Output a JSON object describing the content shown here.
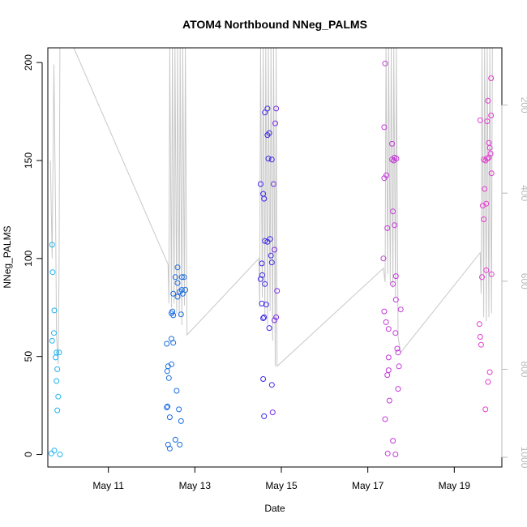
{
  "chart_data": {
    "type": "scatter",
    "title": "ATOM4 Northbound NNeg_PALMS",
    "xlabel": "Date",
    "ylabel": "NNeg_PALMS",
    "x_ticks": [
      "May 11",
      "May 13",
      "May 15",
      "May 17",
      "May 19"
    ],
    "y_ticks": [
      0,
      50,
      100,
      150,
      200
    ],
    "y_right_ticks": [
      200,
      400,
      600,
      800,
      1000
    ],
    "xlim_days": [
      9.6,
      20.1
    ],
    "ylim": [
      -6.4,
      207.5
    ],
    "y_right_lim": [
      1022,
      70
    ],
    "y_right_reversed": true,
    "grid": false,
    "legend": "none",
    "point_colors": [
      "#1fb4f2",
      "#1a6de0",
      "#3c28e8",
      "#7a2fe8",
      "#c43ad8",
      "#e43bd0"
    ],
    "line_color": "#c8c8c8",
    "points": [
      {
        "x": 9.7,
        "y": 107
      },
      {
        "x": 9.71,
        "y": 93
      },
      {
        "x": 9.7,
        "y": 58
      },
      {
        "x": 9.74,
        "y": 62
      },
      {
        "x": 9.75,
        "y": 73.5
      },
      {
        "x": 9.8,
        "y": 52
      },
      {
        "x": 9.86,
        "y": 52
      },
      {
        "x": 9.78,
        "y": 49.5
      },
      {
        "x": 9.82,
        "y": 43.5
      },
      {
        "x": 9.8,
        "y": 37.5
      },
      {
        "x": 9.84,
        "y": 29.5
      },
      {
        "x": 9.82,
        "y": 22.5
      },
      {
        "x": 9.68,
        "y": 0.5
      },
      {
        "x": 9.75,
        "y": 2
      },
      {
        "x": 9.88,
        "y": 0
      },
      {
        "x": 12.6,
        "y": 95.5
      },
      {
        "x": 12.55,
        "y": 90.5
      },
      {
        "x": 12.7,
        "y": 90.5
      },
      {
        "x": 12.75,
        "y": 90.5
      },
      {
        "x": 12.6,
        "y": 87.5
      },
      {
        "x": 12.7,
        "y": 84
      },
      {
        "x": 12.78,
        "y": 84
      },
      {
        "x": 12.65,
        "y": 83
      },
      {
        "x": 12.5,
        "y": 82
      },
      {
        "x": 12.72,
        "y": 82
      },
      {
        "x": 12.6,
        "y": 80.5
      },
      {
        "x": 12.48,
        "y": 73
      },
      {
        "x": 12.46,
        "y": 72
      },
      {
        "x": 12.5,
        "y": 71
      },
      {
        "x": 12.68,
        "y": 71.5
      },
      {
        "x": 12.46,
        "y": 59
      },
      {
        "x": 12.5,
        "y": 57
      },
      {
        "x": 12.35,
        "y": 56.5
      },
      {
        "x": 12.46,
        "y": 46
      },
      {
        "x": 12.38,
        "y": 45
      },
      {
        "x": 12.36,
        "y": 42.5
      },
      {
        "x": 12.4,
        "y": 39
      },
      {
        "x": 12.58,
        "y": 32.5
      },
      {
        "x": 12.37,
        "y": 24.5
      },
      {
        "x": 12.35,
        "y": 24
      },
      {
        "x": 12.63,
        "y": 23
      },
      {
        "x": 12.42,
        "y": 19
      },
      {
        "x": 12.68,
        "y": 17
      },
      {
        "x": 12.55,
        "y": 7.5
      },
      {
        "x": 12.38,
        "y": 5
      },
      {
        "x": 12.65,
        "y": 5
      },
      {
        "x": 12.42,
        "y": 3
      },
      {
        "x": 14.68,
        "y": 176.5
      },
      {
        "x": 14.88,
        "y": 176.5
      },
      {
        "x": 14.62,
        "y": 174.5
      },
      {
        "x": 14.86,
        "y": 169
      },
      {
        "x": 14.72,
        "y": 164
      },
      {
        "x": 14.68,
        "y": 163
      },
      {
        "x": 14.7,
        "y": 151
      },
      {
        "x": 14.78,
        "y": 150.5
      },
      {
        "x": 14.52,
        "y": 138
      },
      {
        "x": 14.82,
        "y": 138
      },
      {
        "x": 14.58,
        "y": 133
      },
      {
        "x": 14.6,
        "y": 130.5
      },
      {
        "x": 14.74,
        "y": 110
      },
      {
        "x": 14.62,
        "y": 109
      },
      {
        "x": 14.68,
        "y": 108.5
      },
      {
        "x": 14.84,
        "y": 104.5
      },
      {
        "x": 14.76,
        "y": 101.5
      },
      {
        "x": 14.55,
        "y": 97.5
      },
      {
        "x": 14.78,
        "y": 98
      },
      {
        "x": 14.56,
        "y": 91.5
      },
      {
        "x": 14.52,
        "y": 89.5
      },
      {
        "x": 14.62,
        "y": 87
      },
      {
        "x": 14.9,
        "y": 83.5
      },
      {
        "x": 14.55,
        "y": 77
      },
      {
        "x": 14.65,
        "y": 76.5
      },
      {
        "x": 14.6,
        "y": 70
      },
      {
        "x": 14.58,
        "y": 69.5
      },
      {
        "x": 14.88,
        "y": 70
      },
      {
        "x": 14.84,
        "y": 68.5
      },
      {
        "x": 14.72,
        "y": 64.5
      },
      {
        "x": 14.58,
        "y": 38.5
      },
      {
        "x": 14.78,
        "y": 35.5
      },
      {
        "x": 14.8,
        "y": 21.5
      },
      {
        "x": 14.6,
        "y": 19.5
      },
      {
        "x": 17.4,
        "y": 199.5
      },
      {
        "x": 17.38,
        "y": 167
      },
      {
        "x": 17.56,
        "y": 158.5
      },
      {
        "x": 17.62,
        "y": 151.5
      },
      {
        "x": 17.66,
        "y": 151
      },
      {
        "x": 17.56,
        "y": 150.5
      },
      {
        "x": 17.6,
        "y": 150
      },
      {
        "x": 17.43,
        "y": 142.5
      },
      {
        "x": 17.38,
        "y": 141
      },
      {
        "x": 17.58,
        "y": 124
      },
      {
        "x": 17.62,
        "y": 117
      },
      {
        "x": 17.45,
        "y": 115.5
      },
      {
        "x": 17.36,
        "y": 100
      },
      {
        "x": 17.65,
        "y": 91
      },
      {
        "x": 17.58,
        "y": 87
      },
      {
        "x": 17.65,
        "y": 79
      },
      {
        "x": 17.76,
        "y": 74
      },
      {
        "x": 17.38,
        "y": 73
      },
      {
        "x": 17.42,
        "y": 67.5
      },
      {
        "x": 17.48,
        "y": 64
      },
      {
        "x": 17.64,
        "y": 62
      },
      {
        "x": 17.68,
        "y": 54
      },
      {
        "x": 17.7,
        "y": 52
      },
      {
        "x": 17.48,
        "y": 49.5
      },
      {
        "x": 17.72,
        "y": 45
      },
      {
        "x": 17.48,
        "y": 43
      },
      {
        "x": 17.45,
        "y": 40.5
      },
      {
        "x": 17.7,
        "y": 33.5
      },
      {
        "x": 17.5,
        "y": 27.5
      },
      {
        "x": 17.4,
        "y": 18
      },
      {
        "x": 17.58,
        "y": 7
      },
      {
        "x": 17.46,
        "y": 0.5
      },
      {
        "x": 17.64,
        "y": 0
      },
      {
        "x": 19.85,
        "y": 192
      },
      {
        "x": 19.78,
        "y": 180.5
      },
      {
        "x": 19.85,
        "y": 173
      },
      {
        "x": 19.6,
        "y": 170.5
      },
      {
        "x": 19.76,
        "y": 170
      },
      {
        "x": 19.8,
        "y": 159
      },
      {
        "x": 19.82,
        "y": 156.5
      },
      {
        "x": 19.84,
        "y": 153.5
      },
      {
        "x": 19.8,
        "y": 151.5
      },
      {
        "x": 19.76,
        "y": 151
      },
      {
        "x": 19.68,
        "y": 150.5
      },
      {
        "x": 19.72,
        "y": 150
      },
      {
        "x": 19.86,
        "y": 143.5
      },
      {
        "x": 19.7,
        "y": 135.5
      },
      {
        "x": 19.74,
        "y": 128
      },
      {
        "x": 19.66,
        "y": 127
      },
      {
        "x": 19.68,
        "y": 120
      },
      {
        "x": 19.74,
        "y": 94
      },
      {
        "x": 19.86,
        "y": 92
      },
      {
        "x": 19.64,
        "y": 90.5
      },
      {
        "x": 19.58,
        "y": 66.5
      },
      {
        "x": 19.6,
        "y": 60
      },
      {
        "x": 19.62,
        "y": 56
      },
      {
        "x": 19.82,
        "y": 42
      },
      {
        "x": 19.78,
        "y": 37
      },
      {
        "x": 19.72,
        "y": 23
      }
    ],
    "line_segments": [
      [
        [
          9.66,
          150
        ],
        [
          9.7,
          100
        ],
        [
          9.74,
          199
        ],
        [
          9.78,
          120
        ],
        [
          9.8,
          60
        ],
        [
          9.84,
          46
        ],
        [
          9.86,
          100
        ],
        [
          9.88,
          207.5
        ]
      ],
      [
        [
          10.2,
          207.5
        ],
        [
          12.38,
          97
        ],
        [
          12.4,
          77
        ],
        [
          12.42,
          207.5
        ],
        [
          12.46,
          75
        ],
        [
          12.48,
          207.5
        ],
        [
          12.52,
          77
        ],
        [
          12.54,
          207.5
        ],
        [
          12.58,
          72
        ],
        [
          12.6,
          207.5
        ],
        [
          12.64,
          70
        ],
        [
          12.66,
          207.5
        ],
        [
          12.7,
          66
        ],
        [
          12.72,
          207.5
        ],
        [
          12.76,
          76
        ],
        [
          12.78,
          207.5
        ],
        [
          12.82,
          61
        ],
        [
          14.48,
          100
        ],
        [
          14.5,
          75
        ],
        [
          14.52,
          207.5
        ],
        [
          14.56,
          80
        ],
        [
          14.58,
          207.5
        ],
        [
          14.62,
          70
        ],
        [
          14.64,
          207.5
        ],
        [
          14.68,
          66
        ],
        [
          14.7,
          207.5
        ],
        [
          14.74,
          73
        ],
        [
          14.76,
          207.5
        ],
        [
          14.8,
          58
        ],
        [
          14.82,
          207.5
        ],
        [
          14.86,
          45
        ],
        [
          14.88,
          207.5
        ],
        [
          14.9,
          45
        ],
        [
          17.36,
          95
        ],
        [
          17.4,
          88
        ],
        [
          17.42,
          207.5
        ],
        [
          17.46,
          92
        ],
        [
          17.48,
          207.5
        ],
        [
          17.52,
          87
        ],
        [
          17.54,
          207.5
        ],
        [
          17.58,
          85
        ],
        [
          17.6,
          207.5
        ],
        [
          17.64,
          80
        ],
        [
          17.66,
          207.5
        ],
        [
          17.7,
          60
        ],
        [
          17.76,
          52
        ],
        [
          19.6,
          103
        ],
        [
          19.62,
          82
        ],
        [
          19.64,
          207.5
        ],
        [
          19.68,
          70
        ],
        [
          19.7,
          207.5
        ],
        [
          19.74,
          68
        ],
        [
          19.76,
          207.5
        ],
        [
          19.8,
          70
        ],
        [
          19.82,
          207.5
        ],
        [
          19.86,
          72
        ],
        [
          19.88,
          207.5
        ]
      ]
    ]
  }
}
